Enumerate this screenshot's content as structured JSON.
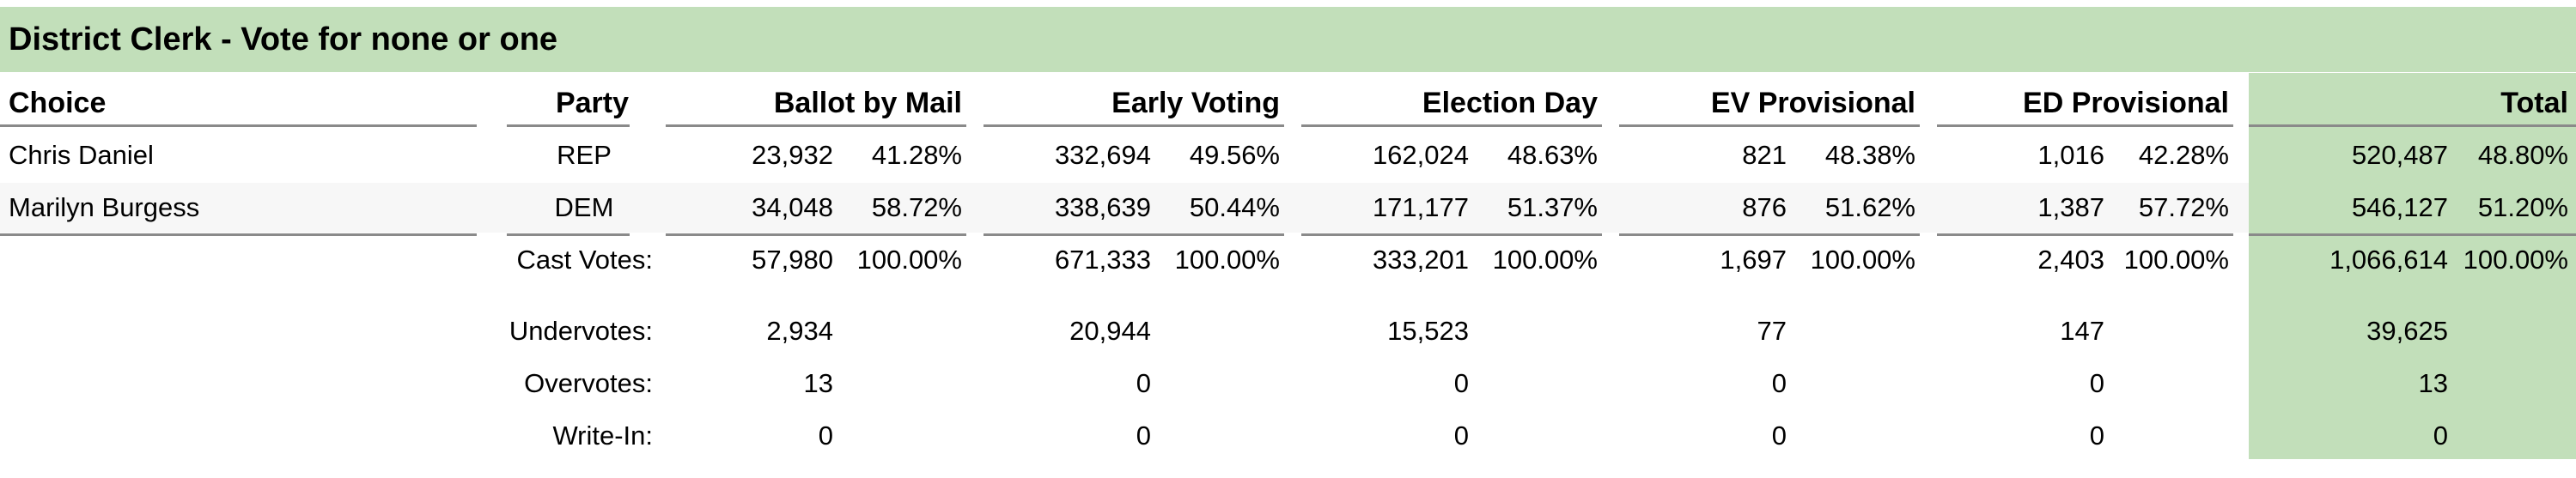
{
  "title": "District Clerk - Vote for none or one",
  "headers": {
    "choice": "Choice",
    "party": "Party",
    "ballot_by_mail": "Ballot by Mail",
    "early_voting": "Early Voting",
    "election_day": "Election Day",
    "ev_provisional": "EV Provisional",
    "ed_provisional": "ED Provisional",
    "total": "Total"
  },
  "candidates": [
    {
      "choice": "Chris Daniel",
      "party": "REP",
      "bbm": "23,932",
      "bbm_pct": "41.28%",
      "ev": "332,694",
      "ev_pct": "49.56%",
      "ed": "162,024",
      "ed_pct": "48.63%",
      "evp": "821",
      "evp_pct": "48.38%",
      "edp": "1,016",
      "edp_pct": "42.28%",
      "total": "520,487",
      "total_pct": "48.80%"
    },
    {
      "choice": "Marilyn Burgess",
      "party": "DEM",
      "bbm": "34,048",
      "bbm_pct": "58.72%",
      "ev": "338,639",
      "ev_pct": "50.44%",
      "ed": "171,177",
      "ed_pct": "51.37%",
      "evp": "876",
      "evp_pct": "51.62%",
      "edp": "1,387",
      "edp_pct": "57.72%",
      "total": "546,127",
      "total_pct": "51.20%"
    }
  ],
  "cast_votes": {
    "label": "Cast Votes:",
    "bbm": "57,980",
    "bbm_pct": "100.00%",
    "ev": "671,333",
    "ev_pct": "100.00%",
    "ed": "333,201",
    "ed_pct": "100.00%",
    "evp": "1,697",
    "evp_pct": "100.00%",
    "edp": "2,403",
    "edp_pct": "100.00%",
    "total": "1,066,614",
    "total_pct": "100.00%"
  },
  "summary": [
    {
      "label": "Undervotes:",
      "bbm": "2,934",
      "ev": "20,944",
      "ed": "15,523",
      "evp": "77",
      "edp": "147",
      "total": "39,625"
    },
    {
      "label": "Overvotes:",
      "bbm": "13",
      "ev": "0",
      "ed": "0",
      "evp": "0",
      "edp": "0",
      "total": "13"
    },
    {
      "label": "Write-In:",
      "bbm": "0",
      "ev": "0",
      "ed": "0",
      "evp": "0",
      "edp": "0",
      "total": "0"
    }
  ],
  "colors": {
    "accent_green": "#c2dfba",
    "rule_gray": "#8a8a8a",
    "band_gray": "#f7f7f7"
  }
}
